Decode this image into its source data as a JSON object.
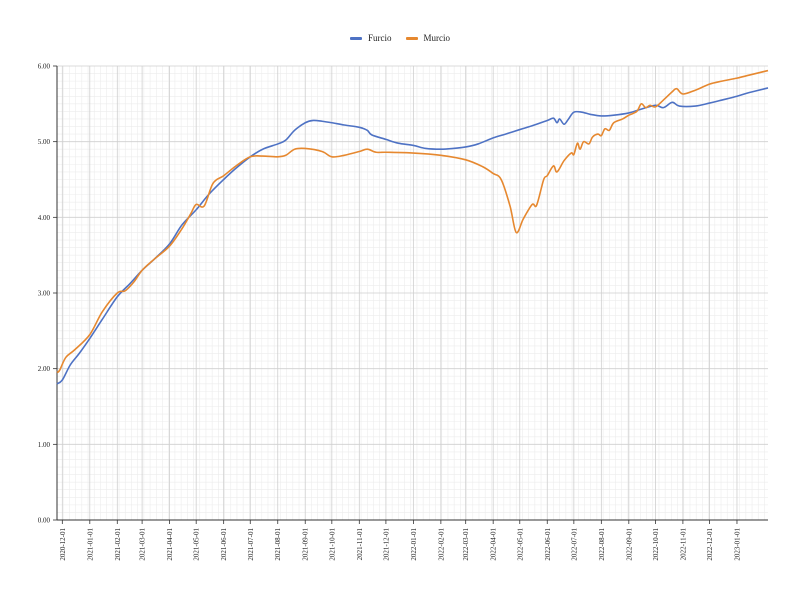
{
  "chart_data": {
    "type": "line",
    "title": "",
    "xlabel": "",
    "ylabel": "",
    "ylim": [
      0,
      6
    ],
    "y_ticks": [
      "0.00",
      "1.00",
      "2.00",
      "3.00",
      "4.00",
      "5.00",
      "6.00"
    ],
    "x_range": [
      "2020-11-25",
      "2023-02-05"
    ],
    "x_ticks": [
      "2020-12-01",
      "2021-01-01",
      "2021-02-01",
      "2021-03-01",
      "2021-04-01",
      "2021-05-01",
      "2021-06-01",
      "2021-07-01",
      "2021-08-01",
      "2021-09-01",
      "2021-10-01",
      "2021-11-01",
      "2021-12-01",
      "2022-01-01",
      "2022-02-01",
      "2022-03-01",
      "2022-04-01",
      "2022-05-01",
      "2022-06-01",
      "2022-07-01",
      "2022-08-01",
      "2022-09-01",
      "2022-10-01",
      "2022-11-01",
      "2022-12-01",
      "2023-01-01"
    ],
    "grid": true,
    "legend_position": "top-center",
    "series": [
      {
        "name": "Furcio",
        "color": "#4e72c4",
        "points": [
          [
            "2020-11-25",
            1.8
          ],
          [
            "2020-12-01",
            1.85
          ],
          [
            "2020-12-10",
            2.05
          ],
          [
            "2020-12-20",
            2.2
          ],
          [
            "2021-01-01",
            2.4
          ],
          [
            "2021-01-15",
            2.65
          ],
          [
            "2021-02-01",
            2.95
          ],
          [
            "2021-02-15",
            3.12
          ],
          [
            "2021-03-01",
            3.3
          ],
          [
            "2021-03-15",
            3.45
          ],
          [
            "2021-04-01",
            3.65
          ],
          [
            "2021-04-15",
            3.9
          ],
          [
            "2021-05-01",
            4.1
          ],
          [
            "2021-05-15",
            4.3
          ],
          [
            "2021-06-01",
            4.5
          ],
          [
            "2021-06-15",
            4.65
          ],
          [
            "2021-07-01",
            4.8
          ],
          [
            "2021-07-15",
            4.9
          ],
          [
            "2021-08-01",
            4.97
          ],
          [
            "2021-08-10",
            5.02
          ],
          [
            "2021-08-20",
            5.15
          ],
          [
            "2021-09-01",
            5.25
          ],
          [
            "2021-09-10",
            5.28
          ],
          [
            "2021-09-20",
            5.27
          ],
          [
            "2021-10-01",
            5.25
          ],
          [
            "2021-10-15",
            5.22
          ],
          [
            "2021-11-01",
            5.19
          ],
          [
            "2021-11-10",
            5.15
          ],
          [
            "2021-11-15",
            5.09
          ],
          [
            "2021-12-01",
            5.03
          ],
          [
            "2021-12-15",
            4.98
          ],
          [
            "2022-01-01",
            4.95
          ],
          [
            "2022-01-15",
            4.91
          ],
          [
            "2022-02-01",
            4.9
          ],
          [
            "2022-02-15",
            4.91
          ],
          [
            "2022-03-01",
            4.93
          ],
          [
            "2022-03-15",
            4.97
          ],
          [
            "2022-04-01",
            5.05
          ],
          [
            "2022-04-15",
            5.1
          ],
          [
            "2022-05-01",
            5.16
          ],
          [
            "2022-05-15",
            5.21
          ],
          [
            "2022-06-01",
            5.28
          ],
          [
            "2022-06-08",
            5.31
          ],
          [
            "2022-06-12",
            5.25
          ],
          [
            "2022-06-15",
            5.3
          ],
          [
            "2022-06-20",
            5.23
          ],
          [
            "2022-06-25",
            5.3
          ],
          [
            "2022-07-01",
            5.39
          ],
          [
            "2022-07-10",
            5.39
          ],
          [
            "2022-07-20",
            5.36
          ],
          [
            "2022-08-01",
            5.34
          ],
          [
            "2022-08-15",
            5.35
          ],
          [
            "2022-09-01",
            5.38
          ],
          [
            "2022-09-15",
            5.43
          ],
          [
            "2022-10-01",
            5.48
          ],
          [
            "2022-10-10",
            5.45
          ],
          [
            "2022-10-20",
            5.52
          ],
          [
            "2022-10-28",
            5.47
          ],
          [
            "2022-11-15",
            5.47
          ],
          [
            "2022-12-01",
            5.51
          ],
          [
            "2022-12-15",
            5.55
          ],
          [
            "2023-01-01",
            5.6
          ],
          [
            "2023-01-15",
            5.65
          ],
          [
            "2023-02-05",
            5.71
          ]
        ]
      },
      {
        "name": "Murcio",
        "color": "#e6882f",
        "points": [
          [
            "2020-11-25",
            1.95
          ],
          [
            "2020-11-28",
            1.98
          ],
          [
            "2020-12-05",
            2.15
          ],
          [
            "2020-12-15",
            2.25
          ],
          [
            "2021-01-01",
            2.45
          ],
          [
            "2021-01-15",
            2.75
          ],
          [
            "2021-02-01",
            3.0
          ],
          [
            "2021-02-10",
            3.03
          ],
          [
            "2021-02-20",
            3.15
          ],
          [
            "2021-03-01",
            3.3
          ],
          [
            "2021-03-15",
            3.45
          ],
          [
            "2021-04-01",
            3.62
          ],
          [
            "2021-04-15",
            3.85
          ],
          [
            "2021-04-25",
            4.05
          ],
          [
            "2021-05-01",
            4.17
          ],
          [
            "2021-05-10",
            4.15
          ],
          [
            "2021-05-20",
            4.45
          ],
          [
            "2021-06-01",
            4.55
          ],
          [
            "2021-06-15",
            4.68
          ],
          [
            "2021-07-01",
            4.8
          ],
          [
            "2021-07-15",
            4.81
          ],
          [
            "2021-08-01",
            4.8
          ],
          [
            "2021-08-10",
            4.82
          ],
          [
            "2021-08-20",
            4.9
          ],
          [
            "2021-09-01",
            4.91
          ],
          [
            "2021-09-20",
            4.87
          ],
          [
            "2021-10-01",
            4.8
          ],
          [
            "2021-10-15",
            4.82
          ],
          [
            "2021-11-01",
            4.87
          ],
          [
            "2021-11-10",
            4.9
          ],
          [
            "2021-11-20",
            4.86
          ],
          [
            "2021-12-01",
            4.86
          ],
          [
            "2022-01-01",
            4.85
          ],
          [
            "2022-02-01",
            4.82
          ],
          [
            "2022-03-01",
            4.76
          ],
          [
            "2022-03-20",
            4.67
          ],
          [
            "2022-04-01",
            4.58
          ],
          [
            "2022-04-10",
            4.5
          ],
          [
            "2022-04-20",
            4.15
          ],
          [
            "2022-04-27",
            3.8
          ],
          [
            "2022-05-05",
            3.98
          ],
          [
            "2022-05-15",
            4.17
          ],
          [
            "2022-05-20",
            4.16
          ],
          [
            "2022-05-28",
            4.5
          ],
          [
            "2022-06-01",
            4.55
          ],
          [
            "2022-06-08",
            4.68
          ],
          [
            "2022-06-12",
            4.6
          ],
          [
            "2022-06-20",
            4.75
          ],
          [
            "2022-06-28",
            4.85
          ],
          [
            "2022-07-01",
            4.83
          ],
          [
            "2022-07-05",
            4.98
          ],
          [
            "2022-07-08",
            4.9
          ],
          [
            "2022-07-12",
            5.0
          ],
          [
            "2022-07-18",
            4.97
          ],
          [
            "2022-07-22",
            5.06
          ],
          [
            "2022-07-28",
            5.1
          ],
          [
            "2022-08-01",
            5.08
          ],
          [
            "2022-08-05",
            5.17
          ],
          [
            "2022-08-10",
            5.15
          ],
          [
            "2022-08-15",
            5.25
          ],
          [
            "2022-08-25",
            5.3
          ],
          [
            "2022-09-01",
            5.35
          ],
          [
            "2022-09-10",
            5.4
          ],
          [
            "2022-09-15",
            5.5
          ],
          [
            "2022-09-20",
            5.45
          ],
          [
            "2022-09-25",
            5.48
          ],
          [
            "2022-10-01",
            5.46
          ],
          [
            "2022-10-10",
            5.55
          ],
          [
            "2022-10-20",
            5.66
          ],
          [
            "2022-10-25",
            5.7
          ],
          [
            "2022-11-01",
            5.63
          ],
          [
            "2022-11-15",
            5.68
          ],
          [
            "2022-12-01",
            5.76
          ],
          [
            "2022-12-15",
            5.8
          ],
          [
            "2023-01-01",
            5.84
          ],
          [
            "2023-01-15",
            5.88
          ],
          [
            "2023-02-05",
            5.94
          ]
        ]
      }
    ]
  }
}
